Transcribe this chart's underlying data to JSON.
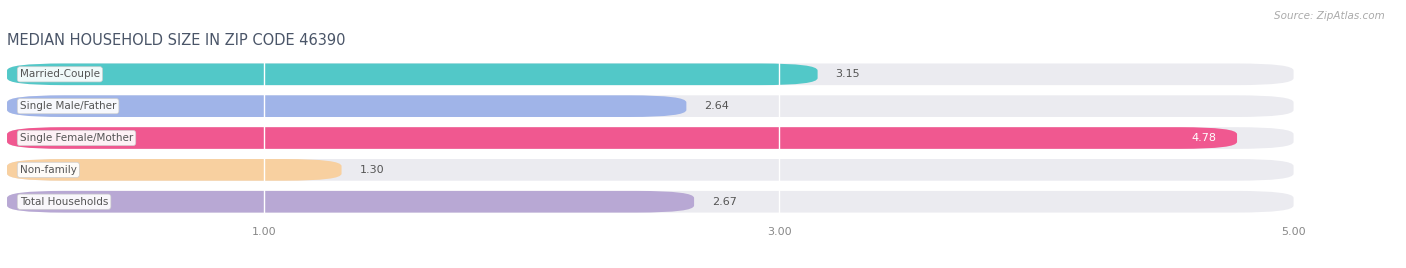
{
  "title": "MEDIAN HOUSEHOLD SIZE IN ZIP CODE 46390",
  "source": "Source: ZipAtlas.com",
  "categories": [
    "Married-Couple",
    "Single Male/Father",
    "Single Female/Mother",
    "Non-family",
    "Total Households"
  ],
  "values": [
    3.15,
    2.64,
    4.78,
    1.3,
    2.67
  ],
  "bar_colors": [
    "#52c8c8",
    "#a0b4e8",
    "#f05890",
    "#f8d0a0",
    "#b8a8d4"
  ],
  "xlim": [
    0,
    5.3
  ],
  "xdata_max": 5.0,
  "xticks": [
    1.0,
    3.0,
    5.0
  ],
  "xtick_labels": [
    "1.00",
    "3.00",
    "5.00"
  ],
  "background_color": "#ffffff",
  "bar_bg_color": "#ebebf0",
  "title_fontsize": 10.5,
  "label_fontsize": 7.5,
  "value_fontsize": 8,
  "source_fontsize": 7.5,
  "bar_height": 0.68,
  "bar_gap": 1.0
}
